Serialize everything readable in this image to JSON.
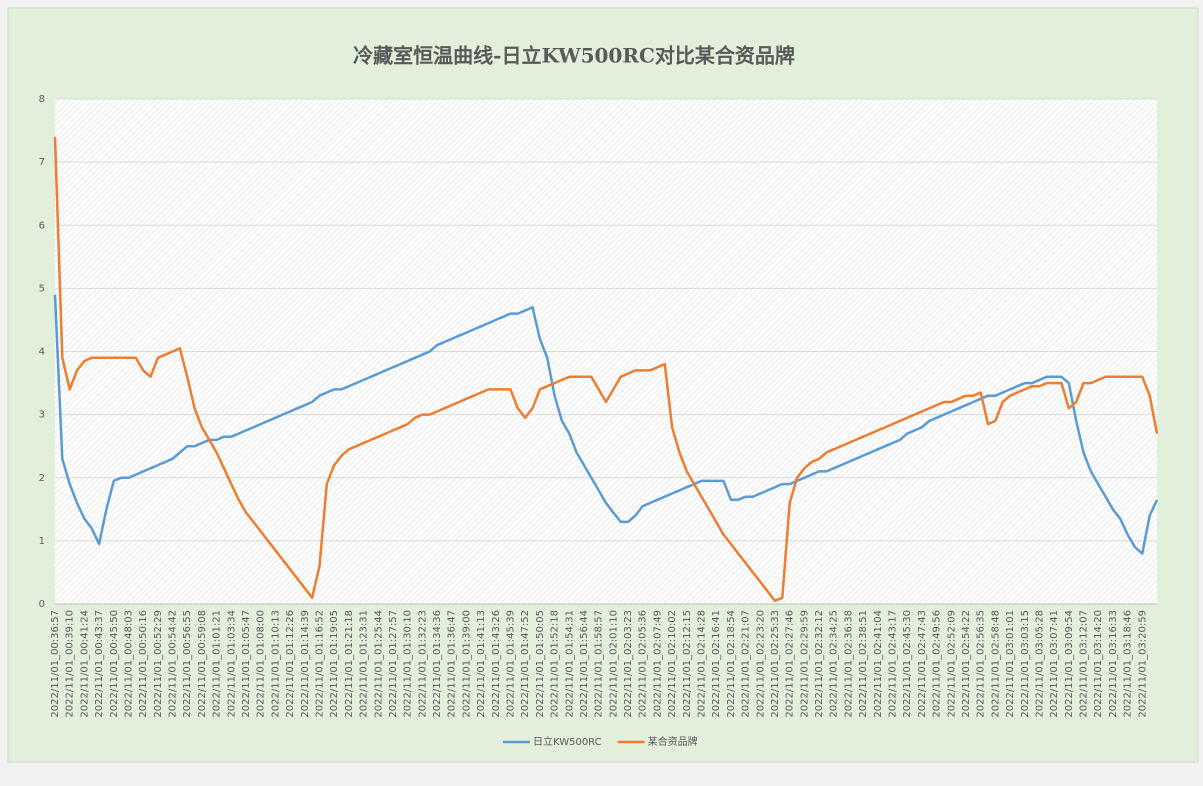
{
  "chart_data": {
    "type": "line",
    "title": "冷藏室恒温曲线-日立KW500RC对比某合资品牌",
    "categories": [
      "2022/11/01_00:36:57",
      null,
      "2022/11/01_00:39:10",
      null,
      "2022/11/01_00:41:24",
      null,
      "2022/11/01_00:43:37",
      null,
      "2022/11/01_00:45:50",
      null,
      "2022/11/01_00:48:03",
      null,
      "2022/11/01_00:50:16",
      null,
      "2022/11/01_00:52:29",
      null,
      "2022/11/01_00:54:42",
      null,
      "2022/11/01_00:56:55",
      null,
      "2022/11/01_00:59:08",
      null,
      "2022/11/01_01:01:21",
      null,
      "2022/11/01_01:03:34",
      null,
      "2022/11/01_01:05:47",
      null,
      "2022/11/01_01:08:00",
      null,
      "2022/11/01_01:10:13",
      null,
      "2022/11/01_01:12:26",
      null,
      "2022/11/01_01:14:39",
      null,
      "2022/11/01_01:16:52",
      null,
      "2022/11/01_01:19:05",
      null,
      "2022/11/01_01:21:18",
      null,
      "2022/11/01_01:23:31",
      null,
      "2022/11/01_01:25:44",
      null,
      "2022/11/01_01:27:57",
      null,
      "2022/11/01_01:30:10",
      null,
      "2022/11/01_01:32:23",
      null,
      "2022/11/01_01:34:36",
      null,
      "2022/11/01_01:36:47",
      null,
      "2022/11/01_01:39:00",
      null,
      "2022/11/01_01:41:13",
      null,
      "2022/11/01_01:43:26",
      null,
      "2022/11/01_01:45:39",
      null,
      "2022/11/01_01:47:52",
      null,
      "2022/11/01_01:50:05",
      null,
      "2022/11/01_01:52:18",
      null,
      "2022/11/01_01:54:31",
      null,
      "2022/11/01_01:56:44",
      null,
      "2022/11/01_01:58:57",
      null,
      "2022/11/01_02:01:10",
      null,
      "2022/11/01_02:03:23",
      null,
      "2022/11/01_02:05:36",
      null,
      "2022/11/01_02:07:49",
      null,
      "2022/11/01_02:10:02",
      null,
      "2022/11/01_02:12:15",
      null,
      "2022/11/01_02:14:28",
      null,
      "2022/11/01_02:16:41",
      null,
      "2022/11/01_02:18:54",
      null,
      "2022/11/01_02:21:07",
      null,
      "2022/11/01_02:23:20",
      null,
      "2022/11/01_02:25:33",
      null,
      "2022/11/01_02:27:46",
      null,
      "2022/11/01_02:29:59",
      null,
      "2022/11/01_02:32:12",
      null,
      "2022/11/01_02:34:25",
      null,
      "2022/11/01_02:36:38",
      null,
      "2022/11/01_02:38:51",
      null,
      "2022/11/01_02:41:04",
      null,
      "2022/11/01_02:43:17",
      null,
      "2022/11/01_02:45:30",
      null,
      "2022/11/01_02:47:43",
      null,
      "2022/11/01_02:49:56",
      null,
      "2022/11/01_02:52:09",
      null,
      "2022/11/01_02:54:22",
      null,
      "2022/11/01_02:56:35",
      null,
      "2022/11/01_02:58:48",
      null,
      "2022/11/01_03:01:01",
      null,
      "2022/11/01_03:03:15",
      null,
      "2022/11/01_03:05:28",
      null,
      "2022/11/01_03:07:41",
      null,
      "2022/11/01_03:09:54",
      null,
      "2022/11/01_03:12:07",
      null,
      "2022/11/01_03:14:20",
      null,
      "2022/11/01_03:16:33",
      null,
      "2022/11/01_03:18:46",
      null,
      "2022/11/01_03:20:59",
      null,
      null
    ],
    "series": [
      {
        "name": "日立KW500RC",
        "color": "#5b9bd5",
        "values": [
          4.9,
          2.3,
          1.9,
          1.6,
          1.35,
          1.2,
          0.95,
          1.5,
          1.95,
          2.0,
          2.0,
          2.05,
          2.1,
          2.15,
          2.2,
          2.25,
          2.3,
          2.4,
          2.5,
          2.5,
          2.55,
          2.6,
          2.6,
          2.65,
          2.65,
          2.7,
          2.75,
          2.8,
          2.85,
          2.9,
          2.95,
          3.0,
          3.05,
          3.1,
          3.15,
          3.2,
          3.3,
          3.35,
          3.4,
          3.4,
          3.45,
          3.5,
          3.55,
          3.6,
          3.65,
          3.7,
          3.75,
          3.8,
          3.85,
          3.9,
          3.95,
          4.0,
          4.1,
          4.15,
          4.2,
          4.25,
          4.3,
          4.35,
          4.4,
          4.45,
          4.5,
          4.55,
          4.6,
          4.6,
          4.65,
          4.7,
          4.2,
          3.9,
          3.3,
          2.9,
          2.7,
          2.4,
          2.2,
          2.0,
          1.8,
          1.6,
          1.45,
          1.3,
          1.3,
          1.4,
          1.55,
          1.6,
          1.65,
          1.7,
          1.75,
          1.8,
          1.85,
          1.9,
          1.95,
          1.95,
          1.95,
          1.95,
          1.65,
          1.65,
          1.7,
          1.7,
          1.75,
          1.8,
          1.85,
          1.9,
          1.9,
          1.95,
          2.0,
          2.05,
          2.1,
          2.1,
          2.15,
          2.2,
          2.25,
          2.3,
          2.35,
          2.4,
          2.45,
          2.5,
          2.55,
          2.6,
          2.7,
          2.75,
          2.8,
          2.9,
          2.95,
          3.0,
          3.05,
          3.1,
          3.15,
          3.2,
          3.25,
          3.3,
          3.3,
          3.35,
          3.4,
          3.45,
          3.5,
          3.5,
          3.55,
          3.6,
          3.6,
          3.6,
          3.5,
          2.9,
          2.4,
          2.1,
          1.9,
          1.7,
          1.5,
          1.35,
          1.1,
          0.9,
          0.8,
          1.4,
          1.65
        ]
      },
      {
        "name": "某合资品牌",
        "color": "#ed7d31",
        "values": [
          7.4,
          3.9,
          3.4,
          3.7,
          3.85,
          3.9,
          3.9,
          3.9,
          3.9,
          3.9,
          3.9,
          3.9,
          3.7,
          3.6,
          3.9,
          3.95,
          4.0,
          4.05,
          3.6,
          3.1,
          2.8,
          2.6,
          2.4,
          2.15,
          1.9,
          1.65,
          1.45,
          1.3,
          1.15,
          1.0,
          0.85,
          0.7,
          0.55,
          0.4,
          0.25,
          0.1,
          0.6,
          1.9,
          2.2,
          2.35,
          2.45,
          2.5,
          2.55,
          2.6,
          2.65,
          2.7,
          2.75,
          2.8,
          2.85,
          2.95,
          3.0,
          3.0,
          3.05,
          3.1,
          3.15,
          3.2,
          3.25,
          3.3,
          3.35,
          3.4,
          3.4,
          3.4,
          3.4,
          3.1,
          2.95,
          3.1,
          3.4,
          3.45,
          3.5,
          3.55,
          3.6,
          3.6,
          3.6,
          3.6,
          3.4,
          3.2,
          3.4,
          3.6,
          3.65,
          3.7,
          3.7,
          3.7,
          3.75,
          3.8,
          2.8,
          2.4,
          2.1,
          1.9,
          1.7,
          1.5,
          1.3,
          1.1,
          0.95,
          0.8,
          0.65,
          0.5,
          0.35,
          0.2,
          0.05,
          0.1,
          1.6,
          2.0,
          2.15,
          2.25,
          2.3,
          2.4,
          2.45,
          2.5,
          2.55,
          2.6,
          2.65,
          2.7,
          2.75,
          2.8,
          2.85,
          2.9,
          2.95,
          3.0,
          3.05,
          3.1,
          3.15,
          3.2,
          3.2,
          3.25,
          3.3,
          3.3,
          3.35,
          2.85,
          2.9,
          3.2,
          3.3,
          3.35,
          3.4,
          3.45,
          3.45,
          3.5,
          3.5,
          3.5,
          3.1,
          3.2,
          3.5,
          3.5,
          3.55,
          3.6,
          3.6,
          3.6,
          3.6,
          3.6,
          3.6,
          3.3,
          2.7
        ]
      }
    ],
    "ylim": [
      0,
      8
    ],
    "yticks": [
      0,
      1,
      2,
      3,
      4,
      5,
      6,
      7,
      8
    ],
    "grid": true,
    "legend": "bottom"
  }
}
